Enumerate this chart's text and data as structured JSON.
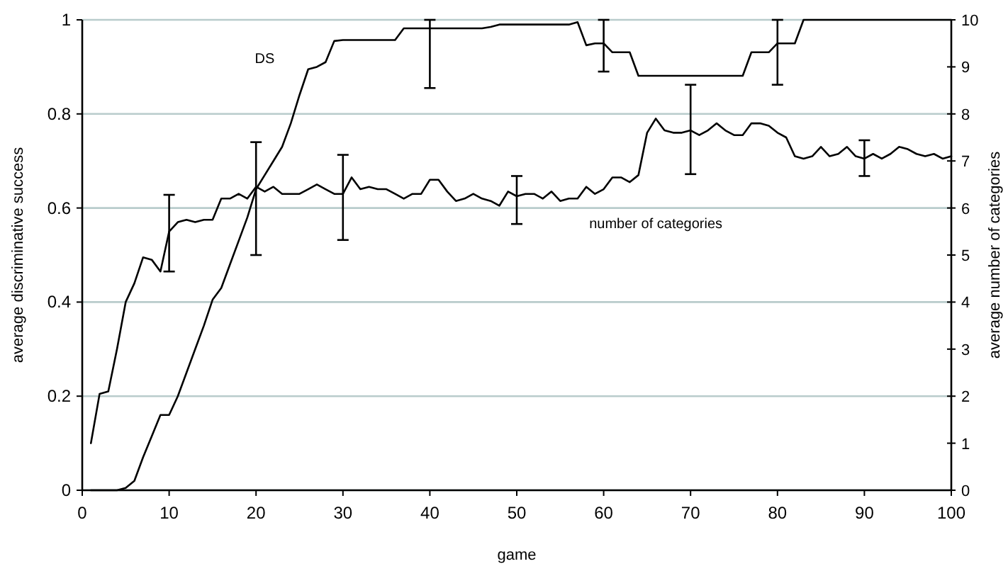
{
  "chart_data": {
    "type": "line",
    "xlabel": "game",
    "ylabel": "average discriminative success",
    "y2label": "average number of categories",
    "x": [
      1,
      2,
      3,
      4,
      5,
      6,
      7,
      8,
      9,
      10,
      11,
      12,
      13,
      14,
      15,
      16,
      17,
      18,
      19,
      20,
      21,
      22,
      23,
      24,
      25,
      26,
      27,
      28,
      29,
      30,
      31,
      32,
      33,
      34,
      35,
      36,
      37,
      38,
      39,
      40,
      41,
      42,
      43,
      44,
      45,
      46,
      47,
      48,
      49,
      50,
      51,
      52,
      53,
      54,
      55,
      56,
      57,
      58,
      59,
      60,
      61,
      62,
      63,
      64,
      65,
      66,
      67,
      68,
      69,
      70,
      71,
      72,
      73,
      74,
      75,
      76,
      77,
      78,
      79,
      80,
      81,
      82,
      83,
      84,
      85,
      86,
      87,
      88,
      89,
      90,
      91,
      92,
      93,
      94,
      95,
      96,
      97,
      98,
      99,
      100
    ],
    "series": [
      {
        "color": "#000000",
        "values": [
          0,
          0,
          0,
          0,
          0.005,
          0.02,
          0.07,
          0.115,
          0.16,
          0.16,
          0.2,
          0.25,
          0.3,
          0.35,
          0.405,
          0.43,
          0.48,
          0.53,
          0.58,
          0.64,
          0.67,
          0.7,
          0.73,
          0.78,
          0.84,
          0.895,
          0.9,
          0.91,
          0.955,
          0.957,
          0.957,
          0.957,
          0.957,
          0.957,
          0.957,
          0.957,
          0.982,
          0.982,
          0.982,
          0.982,
          0.982,
          0.982,
          0.982,
          0.982,
          0.982,
          0.982,
          0.985,
          0.99,
          0.99,
          0.99,
          0.99,
          0.99,
          0.99,
          0.99,
          0.99,
          0.99,
          0.995,
          0.946,
          0.95,
          0.95,
          0.931,
          0.931,
          0.931,
          0.881,
          0.881,
          0.881,
          0.881,
          0.881,
          0.881,
          0.881,
          0.881,
          0.881,
          0.881,
          0.881,
          0.881,
          0.881,
          0.931,
          0.931,
          0.931,
          0.95,
          0.95,
          0.95,
          1,
          1,
          1,
          1,
          1,
          1,
          1,
          1,
          1,
          1,
          1,
          1,
          1,
          1,
          1,
          1,
          1,
          1
        ],
        "errors": [
          null,
          null,
          null,
          null,
          null,
          null,
          null,
          null,
          null,
          null,
          null,
          null,
          null,
          null,
          null,
          null,
          null,
          null,
          null,
          null,
          null,
          null,
          null,
          null,
          null,
          null,
          null,
          null,
          null,
          null,
          null,
          null,
          null,
          null,
          null,
          null,
          null,
          null,
          null,
          [
            0.855,
            1
          ],
          null,
          null,
          null,
          null,
          null,
          null,
          null,
          null,
          null,
          null,
          null,
          null,
          null,
          null,
          null,
          null,
          null,
          null,
          null,
          [
            0.89,
            1
          ],
          null,
          null,
          null,
          null,
          null,
          null,
          null,
          null,
          null,
          null,
          null,
          null,
          null,
          null,
          null,
          null,
          null,
          null,
          null,
          [
            0.862,
            1
          ],
          null,
          null,
          null,
          null,
          null,
          null,
          null,
          null,
          null,
          null,
          null,
          null,
          null,
          null,
          null,
          null,
          null,
          null,
          null,
          null
        ],
        "name": "DS"
      },
      {
        "color": "#000000",
        "axis": "y2",
        "name": "number of categories",
        "values": [
          1,
          2.05,
          2.1,
          3,
          4,
          4.4,
          4.95,
          4.9,
          4.65,
          5.5,
          5.7,
          5.75,
          5.7,
          5.75,
          5.75,
          6.2,
          6.2,
          6.3,
          6.2,
          6.45,
          6.35,
          6.45,
          6.3,
          6.3,
          6.3,
          6.4,
          6.5,
          6.4,
          6.3,
          6.3,
          6.65,
          6.4,
          6.45,
          6.4,
          6.4,
          6.3,
          6.2,
          6.3,
          6.3,
          6.6,
          6.6,
          6.35,
          6.15,
          6.2,
          6.3,
          6.2,
          6.15,
          6.05,
          6.35,
          6.25,
          6.3,
          6.3,
          6.2,
          6.35,
          6.15,
          6.2,
          6.2,
          6.45,
          6.3,
          6.4,
          6.65,
          6.65,
          6.55,
          6.7,
          7.6,
          7.9,
          7.65,
          7.6,
          7.6,
          7.65,
          7.55,
          7.65,
          7.8,
          7.65,
          7.55,
          7.55,
          7.8,
          7.8,
          7.75,
          7.6,
          7.5,
          7.1,
          7.05,
          7.1,
          7.3,
          7.1,
          7.15,
          7.3,
          7.1,
          7.05,
          7.15,
          7.05,
          7.15,
          7.3,
          7.25,
          7.15,
          7.1,
          7.15,
          7.05,
          7.1
        ],
        "errors": [
          null,
          null,
          null,
          null,
          null,
          null,
          null,
          null,
          null,
          [
            4.65,
            6.28
          ],
          null,
          null,
          null,
          null,
          null,
          null,
          null,
          null,
          null,
          [
            5,
            7.4
          ],
          null,
          null,
          null,
          null,
          null,
          null,
          null,
          null,
          null,
          [
            5.32,
            7.13
          ],
          null,
          null,
          null,
          null,
          null,
          null,
          null,
          null,
          null,
          null,
          null,
          null,
          null,
          null,
          null,
          null,
          null,
          null,
          null,
          [
            5.66,
            6.68
          ],
          null,
          null,
          null,
          null,
          null,
          null,
          null,
          null,
          null,
          null,
          null,
          null,
          null,
          null,
          null,
          null,
          null,
          null,
          null,
          [
            6.72,
            8.62
          ],
          null,
          null,
          null,
          null,
          null,
          null,
          null,
          null,
          null,
          null,
          null,
          null,
          null,
          null,
          null,
          null,
          null,
          null,
          null,
          [
            6.68,
            7.44
          ],
          null,
          null,
          null,
          null,
          null,
          null,
          null,
          null,
          null,
          null
        ]
      }
    ],
    "xlim": [
      0,
      100
    ],
    "xticks": [
      0,
      10,
      20,
      30,
      40,
      50,
      60,
      70,
      80,
      90,
      100
    ],
    "ylim": [
      0,
      1
    ],
    "yticks": [
      0,
      0.2,
      0.4,
      0.6,
      0.8,
      1
    ],
    "y2lim": [
      0,
      10
    ],
    "y2ticks": [
      0,
      1,
      2,
      3,
      4,
      5,
      6,
      7,
      8,
      9,
      10
    ],
    "grid": "y",
    "marker": "none",
    "line_style": "solid"
  }
}
